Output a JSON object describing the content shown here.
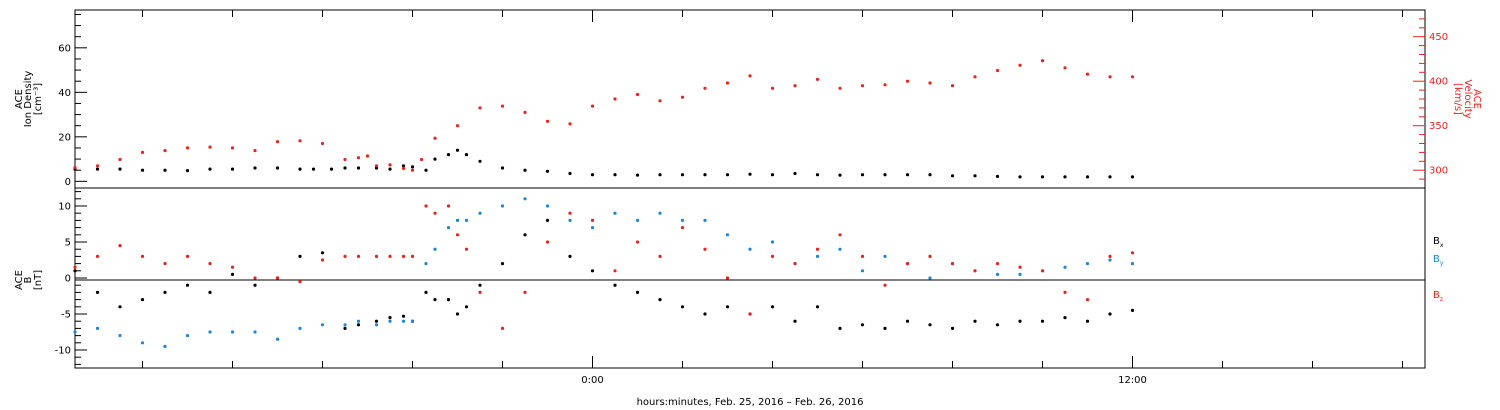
{
  "x_axis": {
    "label": "hours:minutes, Feb. 25, 2016 – Feb. 26, 2016",
    "ticks": [
      {
        "t": 0,
        "label": "0:00"
      },
      {
        "t": 12,
        "label": "12:00"
      }
    ],
    "range": [
      -11.5,
      18.5
    ],
    "minor_step_hours": 2
  },
  "panels": {
    "top": {
      "left_ylabel": [
        "ACE",
        "Ion Density",
        "[cm⁻³]"
      ],
      "right_ylabel": [
        "ACE",
        "Velocity",
        "[km/s]"
      ],
      "left_ticks": [
        "0",
        "20",
        "40",
        "60"
      ],
      "right_ticks": [
        "300",
        "350",
        "400",
        "450"
      ]
    },
    "bottom": {
      "left_ylabel": [
        "ACE",
        "B",
        "[nT]"
      ],
      "left_ticks": [
        "-10",
        "-5",
        "0",
        "5",
        "10"
      ],
      "legend": [
        {
          "base": "B",
          "sub": "x",
          "color": "#000000"
        },
        {
          "base": "B",
          "sub": "y",
          "color": "#1f86d4"
        },
        {
          "base": "B",
          "sub": "z",
          "color": "#e8231f"
        }
      ]
    }
  },
  "chart_data": [
    {
      "type": "scatter",
      "title": "",
      "xlabel": "hours:minutes, Feb. 25, 2016 – Feb. 26, 2016",
      "ylabel": "ACE Ion Density [cm⁻³]",
      "ylim": [
        -3,
        77
      ],
      "y2label": "ACE Velocity [km/s]",
      "y2lim": [
        280,
        480
      ],
      "grid": false,
      "series": [
        {
          "name": "",
          "axis": "left",
          "color": "#000000",
          "x": [
            -11.5,
            -11,
            -10.5,
            -10,
            -9.5,
            -9,
            -8.5,
            -8,
            -7.5,
            -7,
            -6.5,
            -6.2,
            -5.8,
            -5.5,
            -5.2,
            -4.8,
            -4.5,
            -4.2,
            -4.0,
            -3.7,
            -3.5,
            -3.2,
            -3.0,
            -2.8,
            -2.5,
            -2.0,
            -1.5,
            -1.0,
            -0.5,
            0,
            0.5,
            1,
            1.5,
            2,
            2.5,
            3,
            3.5,
            4,
            4.5,
            5,
            5.5,
            6,
            6.5,
            7,
            7.5,
            8,
            8.5,
            9,
            9.5,
            10,
            10.5,
            11,
            11.5,
            12
          ],
          "values": [
            5.5,
            5.5,
            5.5,
            5,
            5,
            4.8,
            5.5,
            5.5,
            6,
            6,
            5.5,
            5.5,
            5.5,
            6,
            6,
            6,
            5.5,
            7,
            6.5,
            5,
            10,
            12,
            14,
            12,
            9,
            6,
            5,
            4.5,
            3.5,
            3,
            3,
            2.8,
            3,
            3,
            3,
            3,
            3.2,
            3,
            3.5,
            3,
            2.8,
            3,
            3,
            3,
            3,
            2.5,
            2.5,
            2.2,
            2,
            2,
            2,
            2,
            2,
            2
          ]
        },
        {
          "name": "",
          "axis": "right",
          "color": "#e8231f",
          "x": [
            -11.5,
            -11.0,
            -10.5,
            -10.0,
            -9.5,
            -9.0,
            -8.5,
            -8.0,
            -7.5,
            -7.0,
            -6.5,
            -6.0,
            -5.5,
            -5.2,
            -5.0,
            -4.8,
            -4.5,
            -4.2,
            -4.0,
            -3.8,
            -3.5,
            -3.0,
            -2.5,
            -2.0,
            -1.5,
            -1.0,
            -0.5,
            0,
            0.5,
            1,
            1.5,
            2,
            2.5,
            3,
            3.5,
            4,
            4.5,
            5,
            5.5,
            6,
            6.5,
            7,
            7.5,
            8,
            8.5,
            9,
            9.5,
            10,
            10.5,
            11,
            11.5,
            12
          ],
          "values": [
            303,
            305,
            312,
            320,
            322,
            325,
            326,
            325,
            322,
            332,
            333,
            330,
            312,
            314,
            316,
            305,
            306,
            302,
            300,
            312,
            336,
            350,
            370,
            372,
            365,
            355,
            352,
            372,
            380,
            385,
            378,
            382,
            392,
            398,
            406,
            392,
            395,
            402,
            392,
            395,
            396,
            400,
            398,
            395,
            405,
            412,
            418,
            423,
            415,
            408,
            405,
            405
          ]
        }
      ]
    },
    {
      "type": "scatter",
      "title": "",
      "xlabel": "hours:minutes, Feb. 25, 2016 – Feb. 26, 2016",
      "ylabel": "ACE B [nT]",
      "ylim": [
        -12.5,
        12.5
      ],
      "grid": false,
      "zero_line": true,
      "series": [
        {
          "name": "Bx",
          "color": "#000000",
          "x": [
            -11.5,
            -11,
            -10.5,
            -10,
            -9.5,
            -9,
            -8.5,
            -8,
            -7.5,
            -7,
            -6.5,
            -6,
            -5.5,
            -5.2,
            -4.8,
            -4.5,
            -4.2,
            -4.0,
            -3.7,
            -3.5,
            -3.2,
            -3.0,
            -2.8,
            -2.5,
            -2.0,
            -1.5,
            -1.0,
            -0.5,
            0,
            0.5,
            1,
            1.5,
            2,
            2.5,
            3,
            3.5,
            4,
            4.5,
            5,
            5.5,
            6,
            6.5,
            7,
            7.5,
            8,
            8.5,
            9,
            9.5,
            10,
            10.5,
            11,
            11.5,
            12
          ],
          "values": [
            1,
            -2,
            -4,
            -3,
            -2,
            -1,
            -2,
            0.5,
            -1,
            0,
            3,
            3.5,
            -7,
            -6.5,
            -6,
            -5.5,
            -5.3,
            -6,
            -2,
            -3,
            -3,
            -5,
            -4,
            -1,
            2,
            6,
            8,
            3,
            1,
            -1,
            -2,
            -3,
            -4,
            -5,
            -4,
            -5,
            -4,
            -6,
            -4,
            -7,
            -6.5,
            -7,
            -6,
            -6.5,
            -7,
            -6,
            -6.5,
            -6,
            -6,
            -5.5,
            -6,
            -5,
            -4.5
          ]
        },
        {
          "name": "By",
          "color": "#1f86d4",
          "x": [
            -11.5,
            -11,
            -10.5,
            -10,
            -9.5,
            -9,
            -8.5,
            -8,
            -7.5,
            -7,
            -6.5,
            -6,
            -5.5,
            -5.2,
            -4.8,
            -4.5,
            -4.2,
            -4.0,
            -3.7,
            -3.5,
            -3.2,
            -3.0,
            -2.8,
            -2.5,
            -2.0,
            -1.5,
            -1.0,
            -0.5,
            0,
            0.5,
            1,
            1.5,
            2,
            2.5,
            3,
            3.5,
            4,
            4.5,
            5,
            5.5,
            6,
            6.5,
            7,
            7.5,
            8,
            8.5,
            9,
            9.5,
            10,
            10.5,
            11,
            11.5,
            12
          ],
          "values": [
            -7.5,
            -7,
            -8,
            -9,
            -9.5,
            -8,
            -7.5,
            -7.5,
            -7.5,
            -8.5,
            -7,
            -6.5,
            -6.5,
            -6,
            -6.5,
            -6,
            -6,
            -6,
            2,
            4,
            7,
            8,
            8,
            9,
            10,
            11,
            10,
            8,
            7,
            9,
            8,
            9,
            8,
            8,
            6,
            4,
            5,
            2,
            3,
            4,
            1,
            3,
            2,
            0,
            2,
            1,
            0.5,
            0.5,
            1,
            1.5,
            2,
            2.5,
            2
          ]
        },
        {
          "name": "Bz",
          "color": "#e8231f",
          "x": [
            -11.5,
            -11,
            -10.5,
            -10,
            -9.5,
            -9,
            -8.5,
            -8,
            -7.5,
            -7,
            -6.5,
            -6,
            -5.5,
            -5.2,
            -4.8,
            -4.5,
            -4.2,
            -4.0,
            -3.7,
            -3.5,
            -3.2,
            -3.0,
            -2.8,
            -2.5,
            -2.0,
            -1.5,
            -1.0,
            -0.5,
            0,
            0.5,
            1,
            1.5,
            2,
            2.5,
            3,
            3.5,
            4,
            4.5,
            5,
            5.5,
            6,
            6.5,
            7,
            7.5,
            8,
            8.5,
            9,
            9.5,
            10,
            10.5,
            11,
            11.5,
            12
          ],
          "values": [
            1.5,
            3,
            4.5,
            3,
            2,
            3,
            2,
            1.5,
            0,
            0,
            -0.5,
            2.5,
            3,
            3,
            3,
            3,
            3,
            3,
            10,
            9,
            10,
            6,
            4,
            -2,
            -7,
            -2,
            5,
            9,
            8,
            1,
            5,
            3,
            7,
            4,
            0,
            -5,
            3,
            2,
            4,
            6,
            3,
            -1,
            2,
            3,
            2,
            1,
            2,
            1.5,
            1,
            -2,
            -3,
            3,
            3.5
          ]
        }
      ]
    }
  ]
}
